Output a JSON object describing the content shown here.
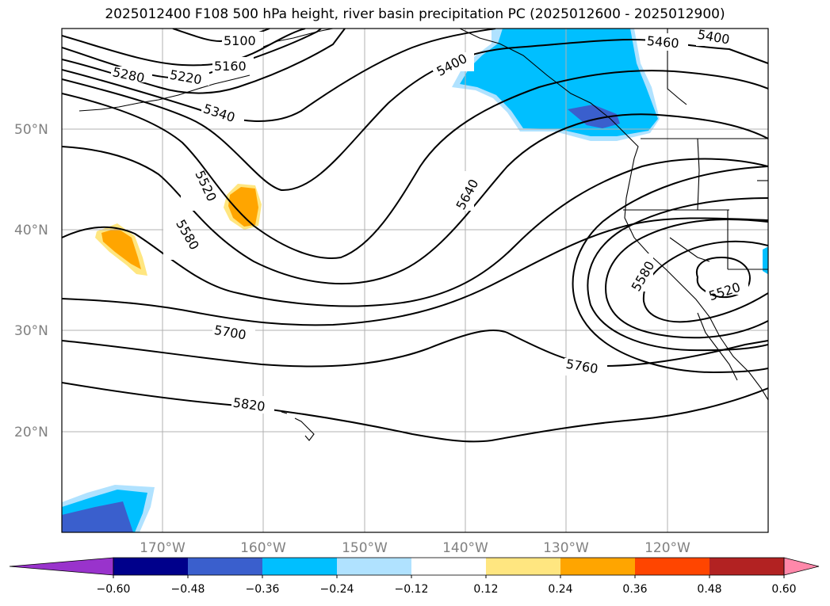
{
  "title": "2025012400 F108 500 hPa height, river basin precipitation PC (2025012600 - 2025012900)",
  "latitude_labels": [
    "50°N",
    "40°N",
    "30°N",
    "20°N"
  ],
  "longitude_labels": [
    "170°W",
    "160°W",
    "150°W",
    "140°W",
    "130°W",
    "120°W"
  ],
  "contour_labels": [
    "5100",
    "5160",
    "5220",
    "5280",
    "5340",
    "5400",
    "5400",
    "5460",
    "5520",
    "5580",
    "5640",
    "5700",
    "5760",
    "5820",
    "5580",
    "5520"
  ],
  "colorbar": {
    "ticks": [
      "−0.60",
      "−0.48",
      "−0.36",
      "−0.24",
      "−0.12",
      "0.12",
      "0.24",
      "0.36",
      "0.48",
      "0.60"
    ],
    "colors": [
      "#9933cc",
      "#00008b",
      "#3a5fcd",
      "#00bfff",
      "#b0e2ff",
      "#ffffff",
      "#ffe680",
      "#ffa500",
      "#ff4500",
      "#b22222",
      "#ff88aa"
    ]
  }
}
